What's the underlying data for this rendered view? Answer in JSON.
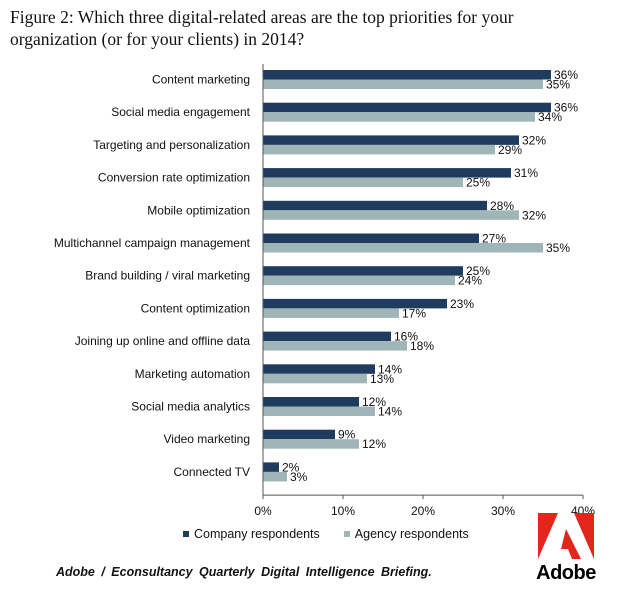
{
  "chart_data": {
    "type": "bar",
    "orientation": "horizontal",
    "title": "Figure 2: Which three digital-related areas are the top priorities for your organization (or for your clients) in 2014?",
    "categories": [
      "Content marketing",
      "Social media engagement",
      "Targeting and personalization",
      "Conversion rate optimization",
      "Mobile optimization",
      "Multichannel campaign management",
      "Brand building / viral marketing",
      "Content optimization",
      "Joining up online and offline data",
      "Marketing automation",
      "Social media analytics",
      "Video marketing",
      "Connected TV"
    ],
    "series": [
      {
        "name": "Company respondents",
        "color": "#1f3b5e",
        "values": [
          36,
          36,
          32,
          31,
          28,
          27,
          25,
          23,
          16,
          14,
          12,
          9,
          2
        ]
      },
      {
        "name": "Agency respondents",
        "color": "#9fb5b8",
        "values": [
          35,
          34,
          29,
          25,
          32,
          35,
          24,
          17,
          18,
          13,
          14,
          12,
          3
        ]
      }
    ],
    "value_suffix": "%",
    "xlim": [
      0,
      40
    ],
    "xticks": [
      "0%",
      "10%",
      "20%",
      "30%",
      "40%"
    ],
    "legend_position": "bottom",
    "grid": false
  },
  "source": "Adobe / Econsultancy  Quarterly  Digital  Intelligence  Briefing.",
  "logo": {
    "wordmark": "Adobe",
    "color": "#e1261c"
  }
}
